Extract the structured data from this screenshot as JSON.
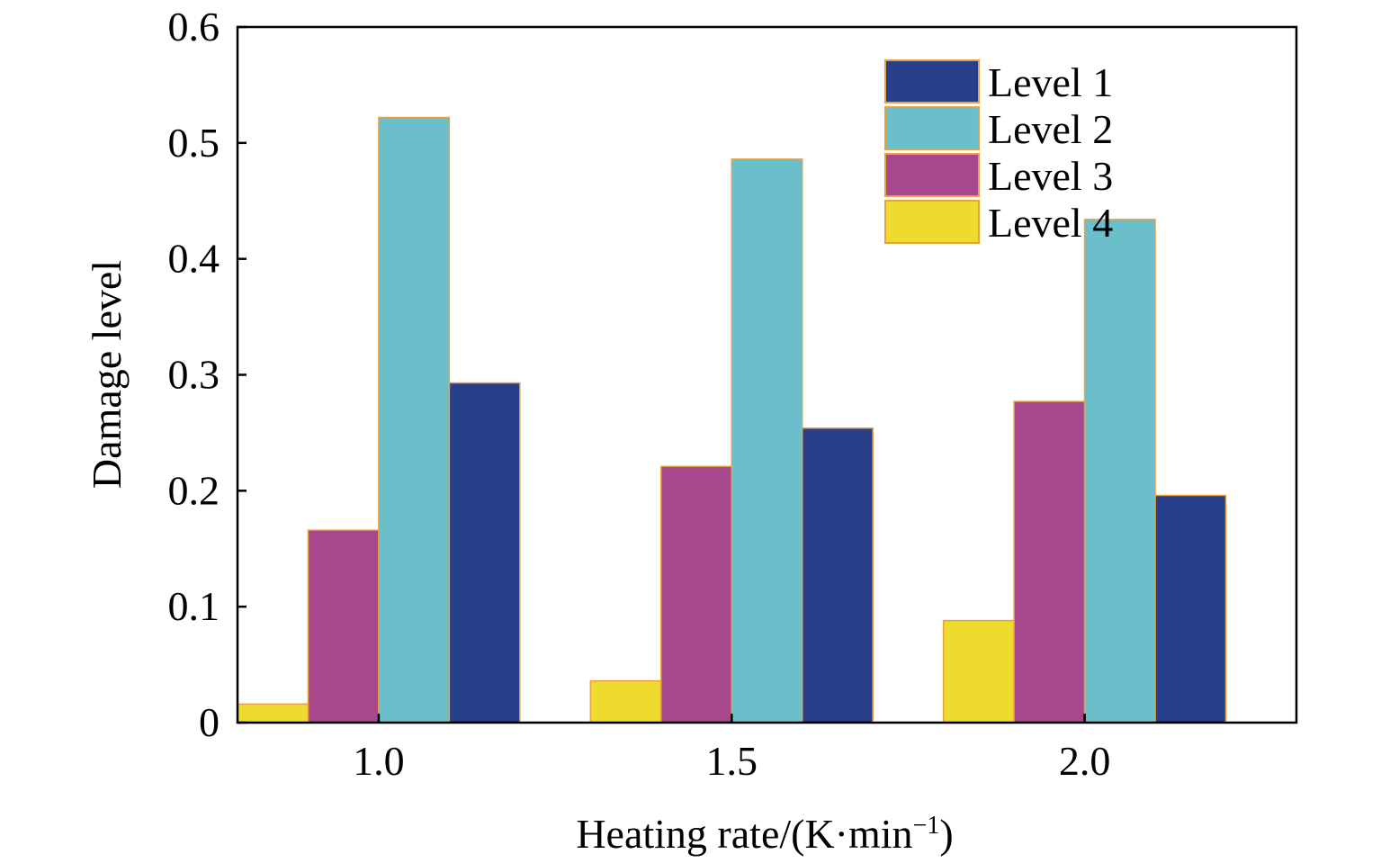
{
  "chart_data": {
    "type": "bar",
    "title": "",
    "xlabel": "Heating rate/(K·min",
    "xlabel_sup": "−1",
    "xlabel_suffix": ")",
    "ylabel": "Damage level",
    "categories": [
      "1.0",
      "1.5",
      "2.0"
    ],
    "ylim": [
      0,
      0.6
    ],
    "yticks": [
      0,
      0.1,
      0.2,
      0.3,
      0.4,
      0.5,
      0.6
    ],
    "ytick_labels": [
      "0",
      "0.1",
      "0.2",
      "0.3",
      "0.4",
      "0.5",
      "0.6"
    ],
    "bar_order": [
      "Level 4",
      "Level 3",
      "Level 2",
      "Level 1"
    ],
    "series": [
      {
        "name": "Level 1",
        "color": "#283F8C",
        "values": [
          0.293,
          0.254,
          0.196
        ]
      },
      {
        "name": "Level 2",
        "color": "#6BBFCB",
        "values": [
          0.522,
          0.486,
          0.434
        ]
      },
      {
        "name": "Level 3",
        "color": "#A8478C",
        "values": [
          0.166,
          0.221,
          0.277
        ]
      },
      {
        "name": "Level 4",
        "color": "#EDDC2E",
        "values": [
          0.016,
          0.036,
          0.088
        ]
      }
    ],
    "legend_position": "top-right",
    "grid": false
  }
}
